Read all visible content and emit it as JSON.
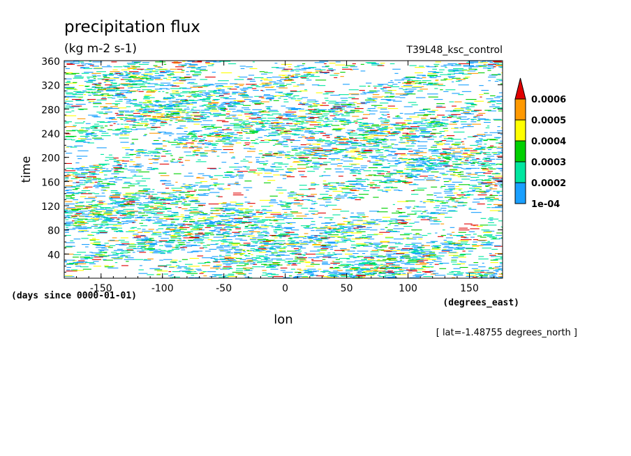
{
  "chart_data": {
    "type": "heatmap",
    "title": "precipitation flux",
    "units": "(kg m-2 s-1)",
    "dataset": "T39L48_ksc_control",
    "xlabel": "lon",
    "xunits": "(degrees_east)",
    "ylabel": "time",
    "yunits": "(days since 0000-01-01)",
    "footnote": "[ lat=-1.48755 degrees_north ]",
    "xlim": [
      -180,
      177
    ],
    "ylim": [
      0,
      360
    ],
    "x_ticks": [
      -150,
      -100,
      -50,
      0,
      50,
      100,
      150
    ],
    "x_tick_labels": [
      "-150",
      "-100",
      "-50",
      "0",
      "50",
      "100",
      "150"
    ],
    "y_ticks": [
      40,
      80,
      120,
      160,
      200,
      240,
      280,
      320,
      360
    ],
    "y_tick_labels": [
      "40",
      "80",
      "120",
      "160",
      "200",
      "240",
      "280",
      "320",
      "360"
    ],
    "colorbar": {
      "levels": [
        0.0001,
        0.0002,
        0.0003,
        0.0004,
        0.0005,
        0.0006
      ],
      "labels": [
        "1e-04",
        "0.0002",
        "0.0003",
        "0.0004",
        "0.0005",
        "0.0006"
      ],
      "colors": [
        "#1aa0ff",
        "#00e6a0",
        "#00d000",
        "#ffff00",
        "#ff9900",
        "#e00000"
      ],
      "extend": "max"
    },
    "field": "Hovmoller diagram of precipitation flux: noisy eastward-propagating streaks of 1e-04 to >0.0006 across all longitudes and times"
  }
}
